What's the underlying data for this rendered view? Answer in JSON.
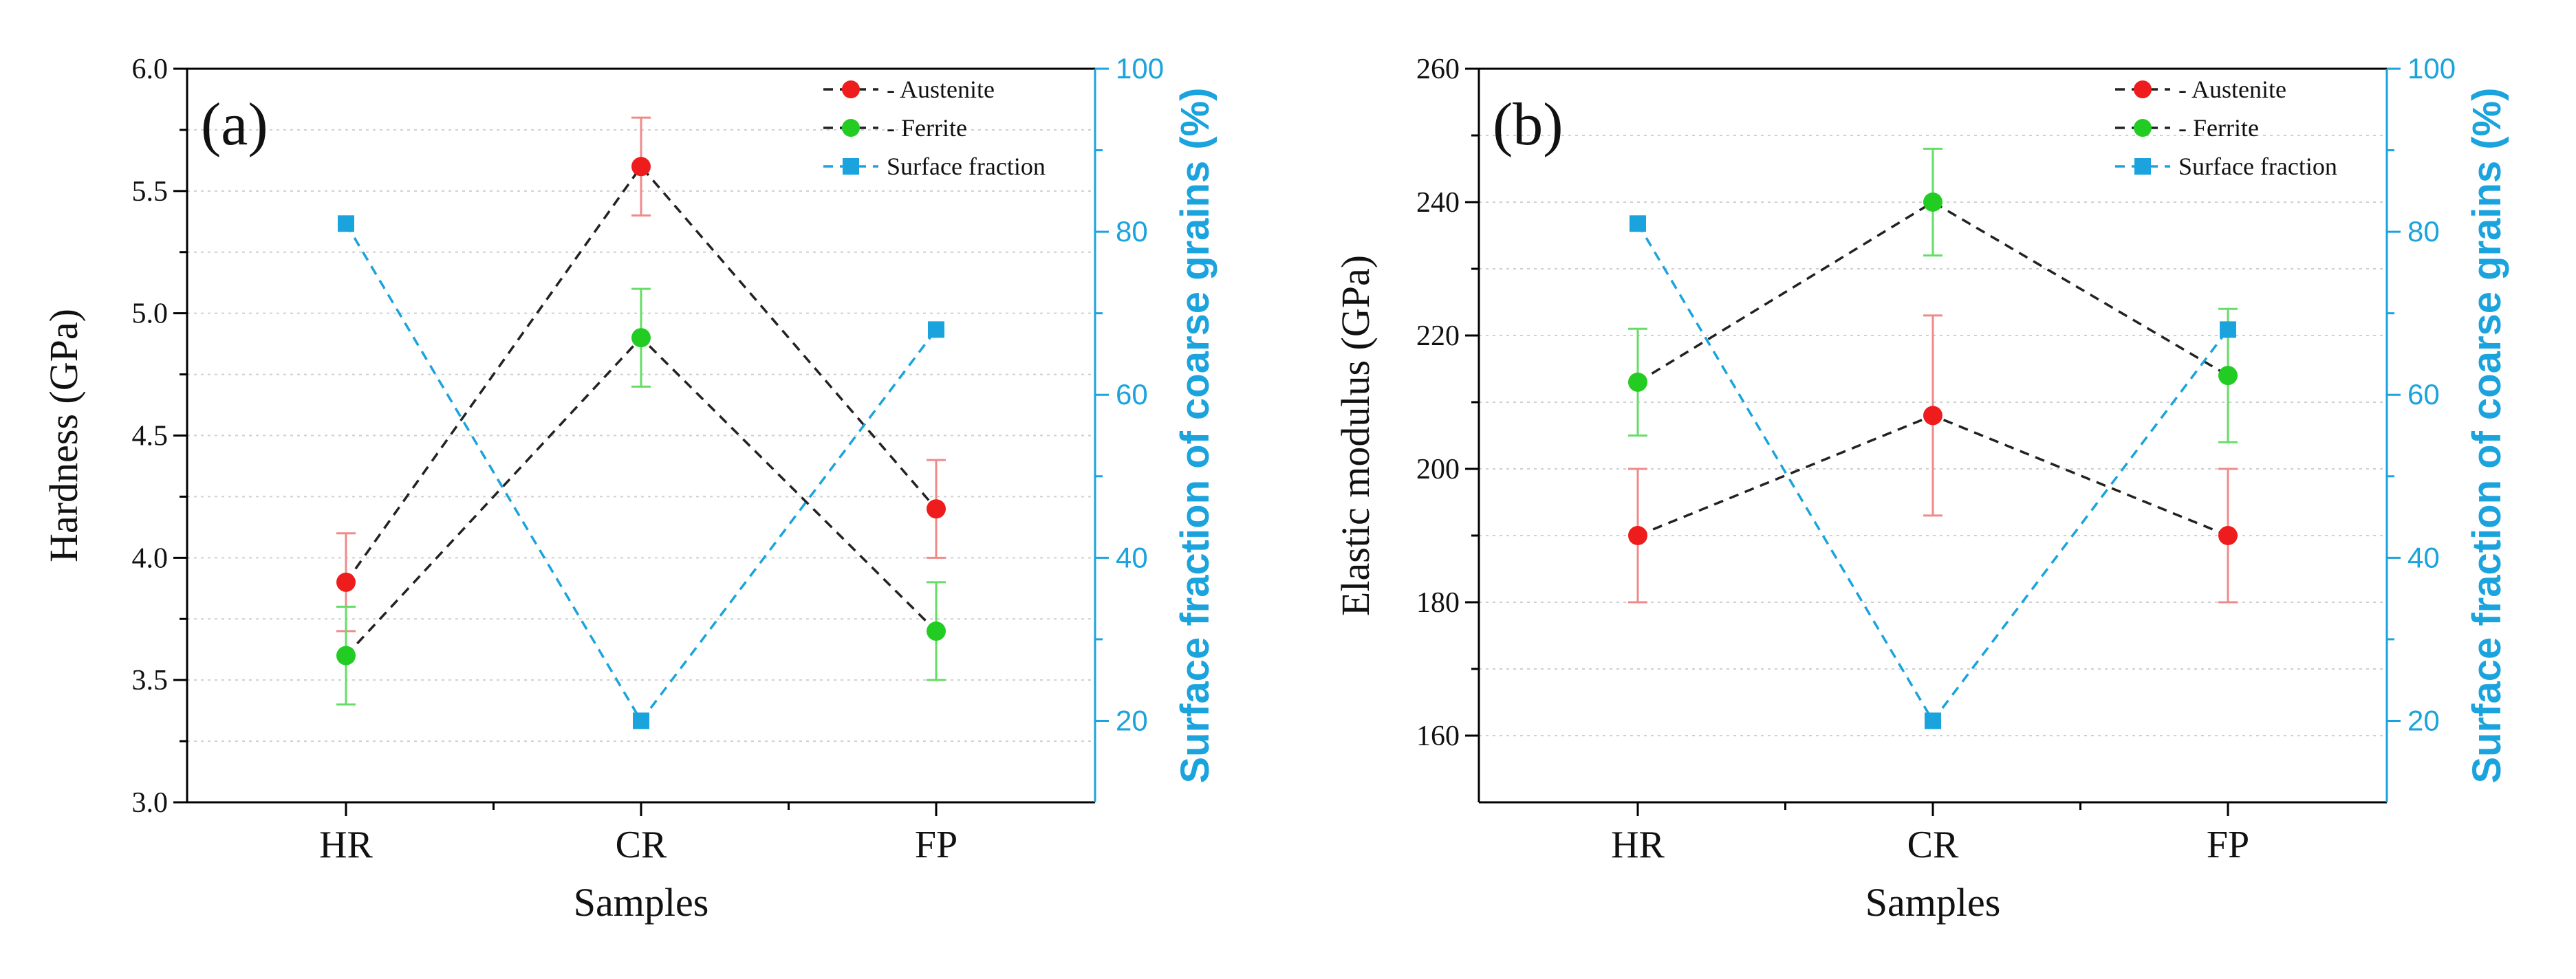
{
  "colors": {
    "austenite": "#ee1c1c",
    "austenite_err": "#f08a8a",
    "ferrite": "#22cc22",
    "ferrite_err": "#66dd66",
    "surface": "#1aa3dd",
    "axis": "#000000",
    "grid": "#cfcfcf"
  },
  "chart_data": [
    {
      "type": "line",
      "panel_label": "(a)",
      "categories": [
        "HR",
        "CR",
        "FP"
      ],
      "xlabel": "Samples",
      "ylabel": "Hardness (GPa)",
      "ylabel_right": "Surface fraction of coarse grains (%)",
      "ylim": [
        3.0,
        6.0
      ],
      "yticks": [
        "3.0",
        "3.5",
        "4.0",
        "4.5",
        "5.0",
        "5.5",
        "6.0"
      ],
      "ylim_right": [
        10,
        100
      ],
      "yticks_right": [
        "20",
        "40",
        "60",
        "80",
        "100"
      ],
      "grid": true,
      "legend_position": "top-right",
      "series": [
        {
          "name": "Austenite",
          "legend": "- Austenite",
          "axis": "left",
          "marker": "circle",
          "color_key": "austenite",
          "values": [
            3.9,
            5.6,
            4.2
          ],
          "errors": [
            0.2,
            0.2,
            0.2
          ]
        },
        {
          "name": "Ferrite",
          "legend": "- Ferrite",
          "axis": "left",
          "marker": "circle",
          "color_key": "ferrite",
          "values": [
            3.6,
            4.9,
            3.7
          ],
          "errors": [
            0.2,
            0.2,
            0.2
          ]
        },
        {
          "name": "Surface fraction",
          "legend": "Surface fraction",
          "axis": "right",
          "marker": "square",
          "color_key": "surface",
          "values": [
            81,
            20,
            68
          ],
          "errors": [
            0,
            0,
            0
          ]
        }
      ]
    },
    {
      "type": "line",
      "panel_label": "(b)",
      "categories": [
        "HR",
        "CR",
        "FP"
      ],
      "xlabel": "Samples",
      "ylabel": "Elastic modulus (GPa)",
      "ylabel_right": "Surface fraction of coarse grains (%)",
      "ylim": [
        150,
        260
      ],
      "yticks": [
        "160",
        "180",
        "200",
        "220",
        "240",
        "260"
      ],
      "ylim_right": [
        10,
        100
      ],
      "yticks_right": [
        "20",
        "40",
        "60",
        "80",
        "100"
      ],
      "grid": true,
      "legend_position": "top-right",
      "series": [
        {
          "name": "Austenite",
          "legend": "- Austenite",
          "axis": "left",
          "marker": "circle",
          "color_key": "austenite",
          "values": [
            190,
            208,
            190
          ],
          "errors": [
            10,
            15,
            10
          ]
        },
        {
          "name": "Ferrite",
          "legend": "- Ferrite",
          "axis": "left",
          "marker": "circle",
          "color_key": "ferrite",
          "values": [
            213,
            240,
            214
          ],
          "errors": [
            8,
            8,
            10
          ]
        },
        {
          "name": "Surface fraction",
          "legend": "Surface fraction",
          "axis": "right",
          "marker": "square",
          "color_key": "surface",
          "values": [
            81,
            20,
            68
          ],
          "errors": [
            0,
            0,
            0
          ]
        }
      ]
    }
  ]
}
